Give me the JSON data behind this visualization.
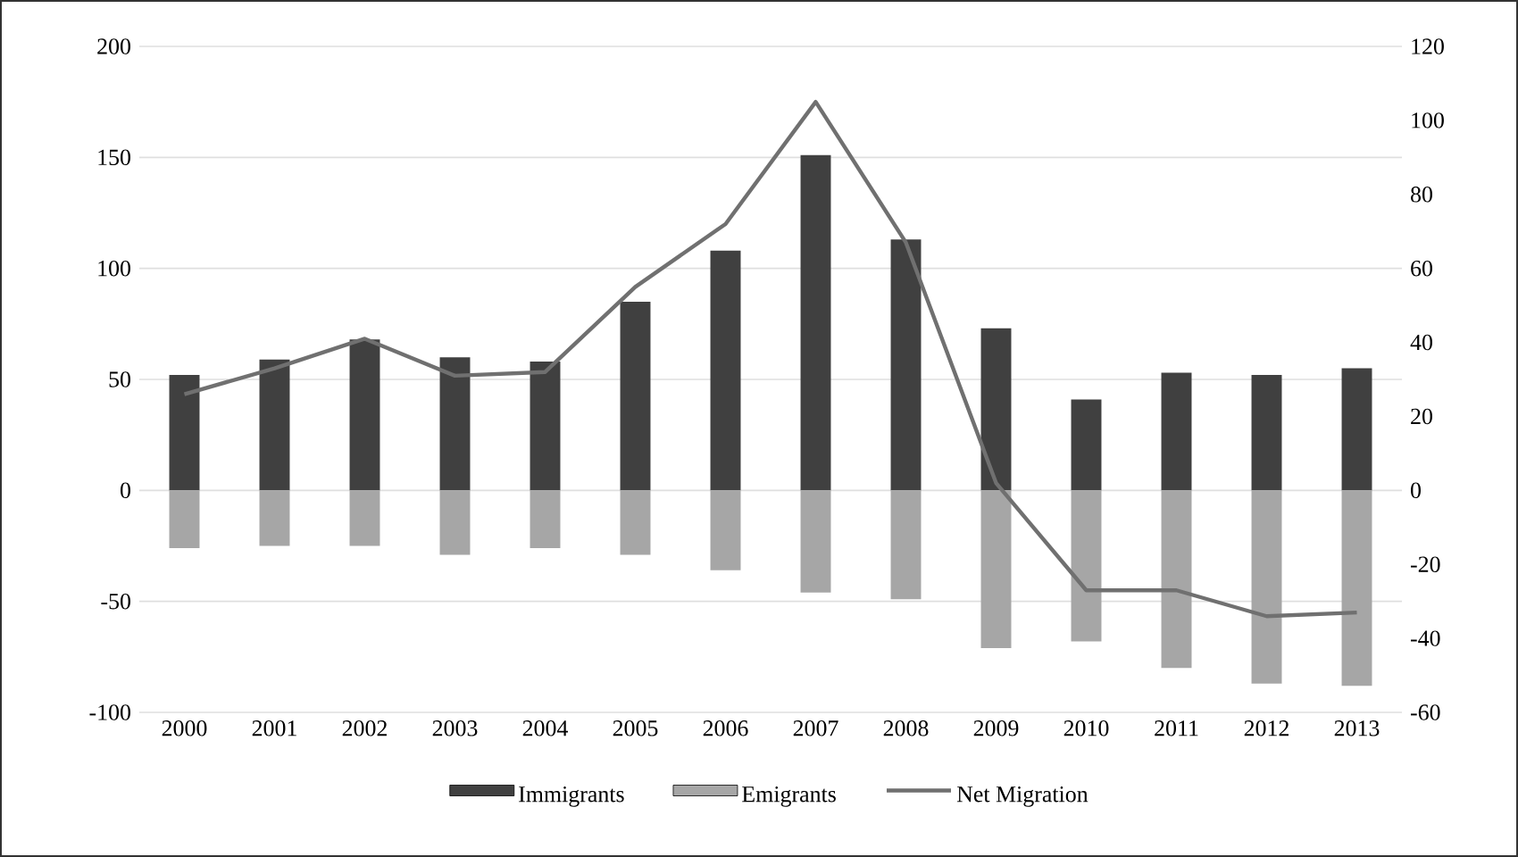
{
  "chart_data": {
    "type": "bar",
    "categories": [
      "2000",
      "2001",
      "2002",
      "2003",
      "2004",
      "2005",
      "2006",
      "2007",
      "2008",
      "2009",
      "2010",
      "2011",
      "2012",
      "2013"
    ],
    "series": [
      {
        "name": "Immigrants",
        "color": "#404040",
        "values": [
          52,
          59,
          68,
          60,
          58,
          85,
          108,
          151,
          113,
          73,
          41,
          53,
          52,
          55
        ]
      },
      {
        "name": "Emigrants",
        "color": "#a6a6a6",
        "values": [
          -26,
          -25,
          -25,
          -29,
          -26,
          -29,
          -36,
          -46,
          -49,
          -71,
          -68,
          -80,
          -87,
          -88
        ]
      },
      {
        "name": "Net Migration",
        "color": "#707070",
        "type": "line",
        "axis": "y2",
        "values": [
          26,
          33,
          41,
          31,
          32,
          55,
          72,
          105,
          67,
          2,
          -27,
          -27,
          -34,
          -33
        ]
      }
    ],
    "ylim": [
      -100,
      200
    ],
    "yticks": [
      -100,
      -50,
      0,
      50,
      100,
      150,
      200
    ],
    "y2lim": [
      -60,
      120
    ],
    "y2ticks": [
      -60,
      -40,
      -20,
      0,
      20,
      40,
      60,
      80,
      100,
      120
    ],
    "stacked": true,
    "grid": "y",
    "legend": "bottom"
  }
}
